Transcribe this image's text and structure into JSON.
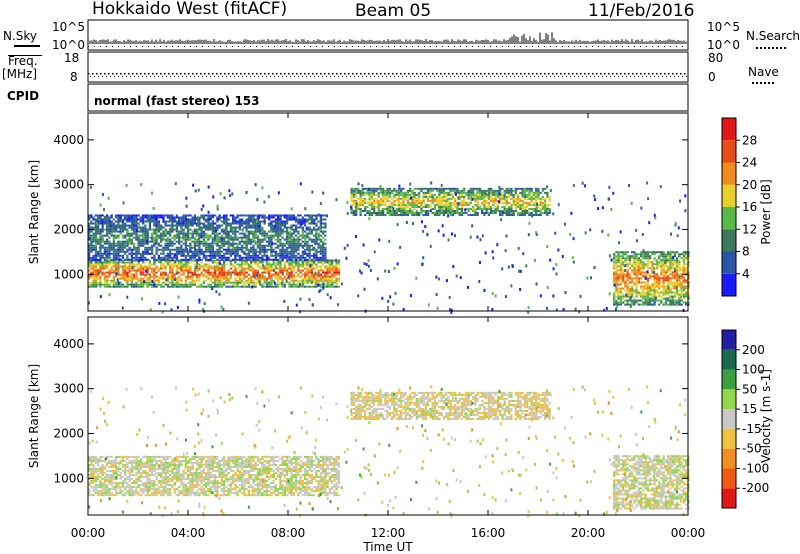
{
  "header": {
    "site": "Hokkaido West (fitACF)",
    "beam": "Beam 05",
    "date": "11/Feb/2016"
  },
  "top_panels": {
    "nsky_label": "N.Sky",
    "nsky_tick_top": "10^5",
    "nsky_tick_bottom": "10^0",
    "nsearch_label": "N.Search",
    "nsearch_tick_top": "10^5",
    "nsearch_tick_bottom": "10^0",
    "freq_label": "Freq.",
    "freq_unit": "[MHz]",
    "freq_tick_top": "18",
    "freq_tick_bottom": "8",
    "nave_label": "Nave",
    "nave_tick_top": "80",
    "nave_tick_bottom": "0",
    "cpid_label": "CPID",
    "cpid_text": "normal (fast stereo) 153"
  },
  "x_axis": {
    "label": "Time UT",
    "ticks": [
      "00:00",
      "04:00",
      "08:00",
      "12:00",
      "16:00",
      "20:00",
      "00:00"
    ]
  },
  "colors": {
    "power": [
      "#1a1aff",
      "#2a55a8",
      "#3a7a5a",
      "#58b848",
      "#e8d02a",
      "#f08c1c",
      "#e84a1a",
      "#e01818"
    ],
    "velocity": [
      "#e01818",
      "#f05a10",
      "#f09020",
      "#f0c040",
      "#c8c8c8",
      "#90d848",
      "#3aa040",
      "#1a6a50",
      "#2020a0"
    ]
  },
  "chart_data": [
    {
      "type": "heatmap",
      "title": "Power",
      "ylabel": "Slant Range [km]",
      "xlabel": "",
      "ylim": [
        180,
        4600
      ],
      "xlim_hours": [
        0,
        24
      ],
      "yticks": [
        "1000",
        "2000",
        "3000",
        "4000"
      ],
      "colorbar": {
        "label": "Power [dB]",
        "ticks": [
          "4",
          "8",
          "12",
          "16",
          "20",
          "24",
          "28"
        ],
        "range": [
          0,
          32
        ]
      },
      "echo_bands": [
        {
          "t_start": 0.0,
          "t_end": 10.0,
          "range_low": 700,
          "range_high": 1300,
          "level_db": 24
        },
        {
          "t_start": 0.0,
          "t_end": 9.5,
          "range_low": 1300,
          "range_high": 2300,
          "level_db": 10
        },
        {
          "t_start": 10.5,
          "t_end": 18.5,
          "range_low": 2300,
          "range_high": 2900,
          "level_db": 18
        },
        {
          "t_start": 21.0,
          "t_end": 24.0,
          "range_low": 300,
          "range_high": 1500,
          "level_db": 22
        }
      ]
    },
    {
      "type": "heatmap",
      "title": "Velocity",
      "ylabel": "Slant Range [km]",
      "xlabel": "Time UT",
      "ylim": [
        180,
        4600
      ],
      "xlim_hours": [
        0,
        24
      ],
      "yticks": [
        "1000",
        "2000",
        "3000",
        "4000"
      ],
      "colorbar": {
        "label": "Velocity [m s-1]",
        "ticks": [
          "200",
          "100",
          "50",
          "15",
          "-15",
          "-50",
          "-100",
          "-200"
        ],
        "range": [
          -250,
          250
        ]
      },
      "echo_bands": [
        {
          "t_start": 0.0,
          "t_end": 10.0,
          "range_low": 600,
          "range_high": 1500,
          "velocity": 0
        },
        {
          "t_start": 10.5,
          "t_end": 18.5,
          "range_low": 2300,
          "range_high": 2900,
          "velocity": -10
        },
        {
          "t_start": 21.0,
          "t_end": 24.0,
          "range_low": 300,
          "range_high": 1500,
          "velocity": 0
        }
      ]
    }
  ]
}
